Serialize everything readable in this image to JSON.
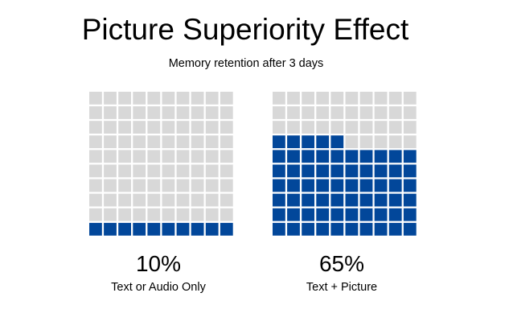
{
  "title": "Picture Superiority Effect",
  "subtitle": "Memory retention after 3 days",
  "colors": {
    "filled": "#02479a",
    "empty": "#d8d8d8",
    "background": "#ffffff"
  },
  "chart_data": [
    {
      "type": "waffle",
      "title": "Picture Superiority Effect",
      "subtitle": "Memory retention after 3 days",
      "total_cells": 100,
      "filled_cells": 10,
      "percent": 10,
      "value_label": "10%",
      "caption": "Text or Audio Only"
    },
    {
      "type": "waffle",
      "title": "Picture Superiority Effect",
      "subtitle": "Memory retention after 3 days",
      "total_cells": 100,
      "filled_cells": 65,
      "percent": 65,
      "value_label": "65%",
      "caption": "Text + Picture"
    }
  ]
}
